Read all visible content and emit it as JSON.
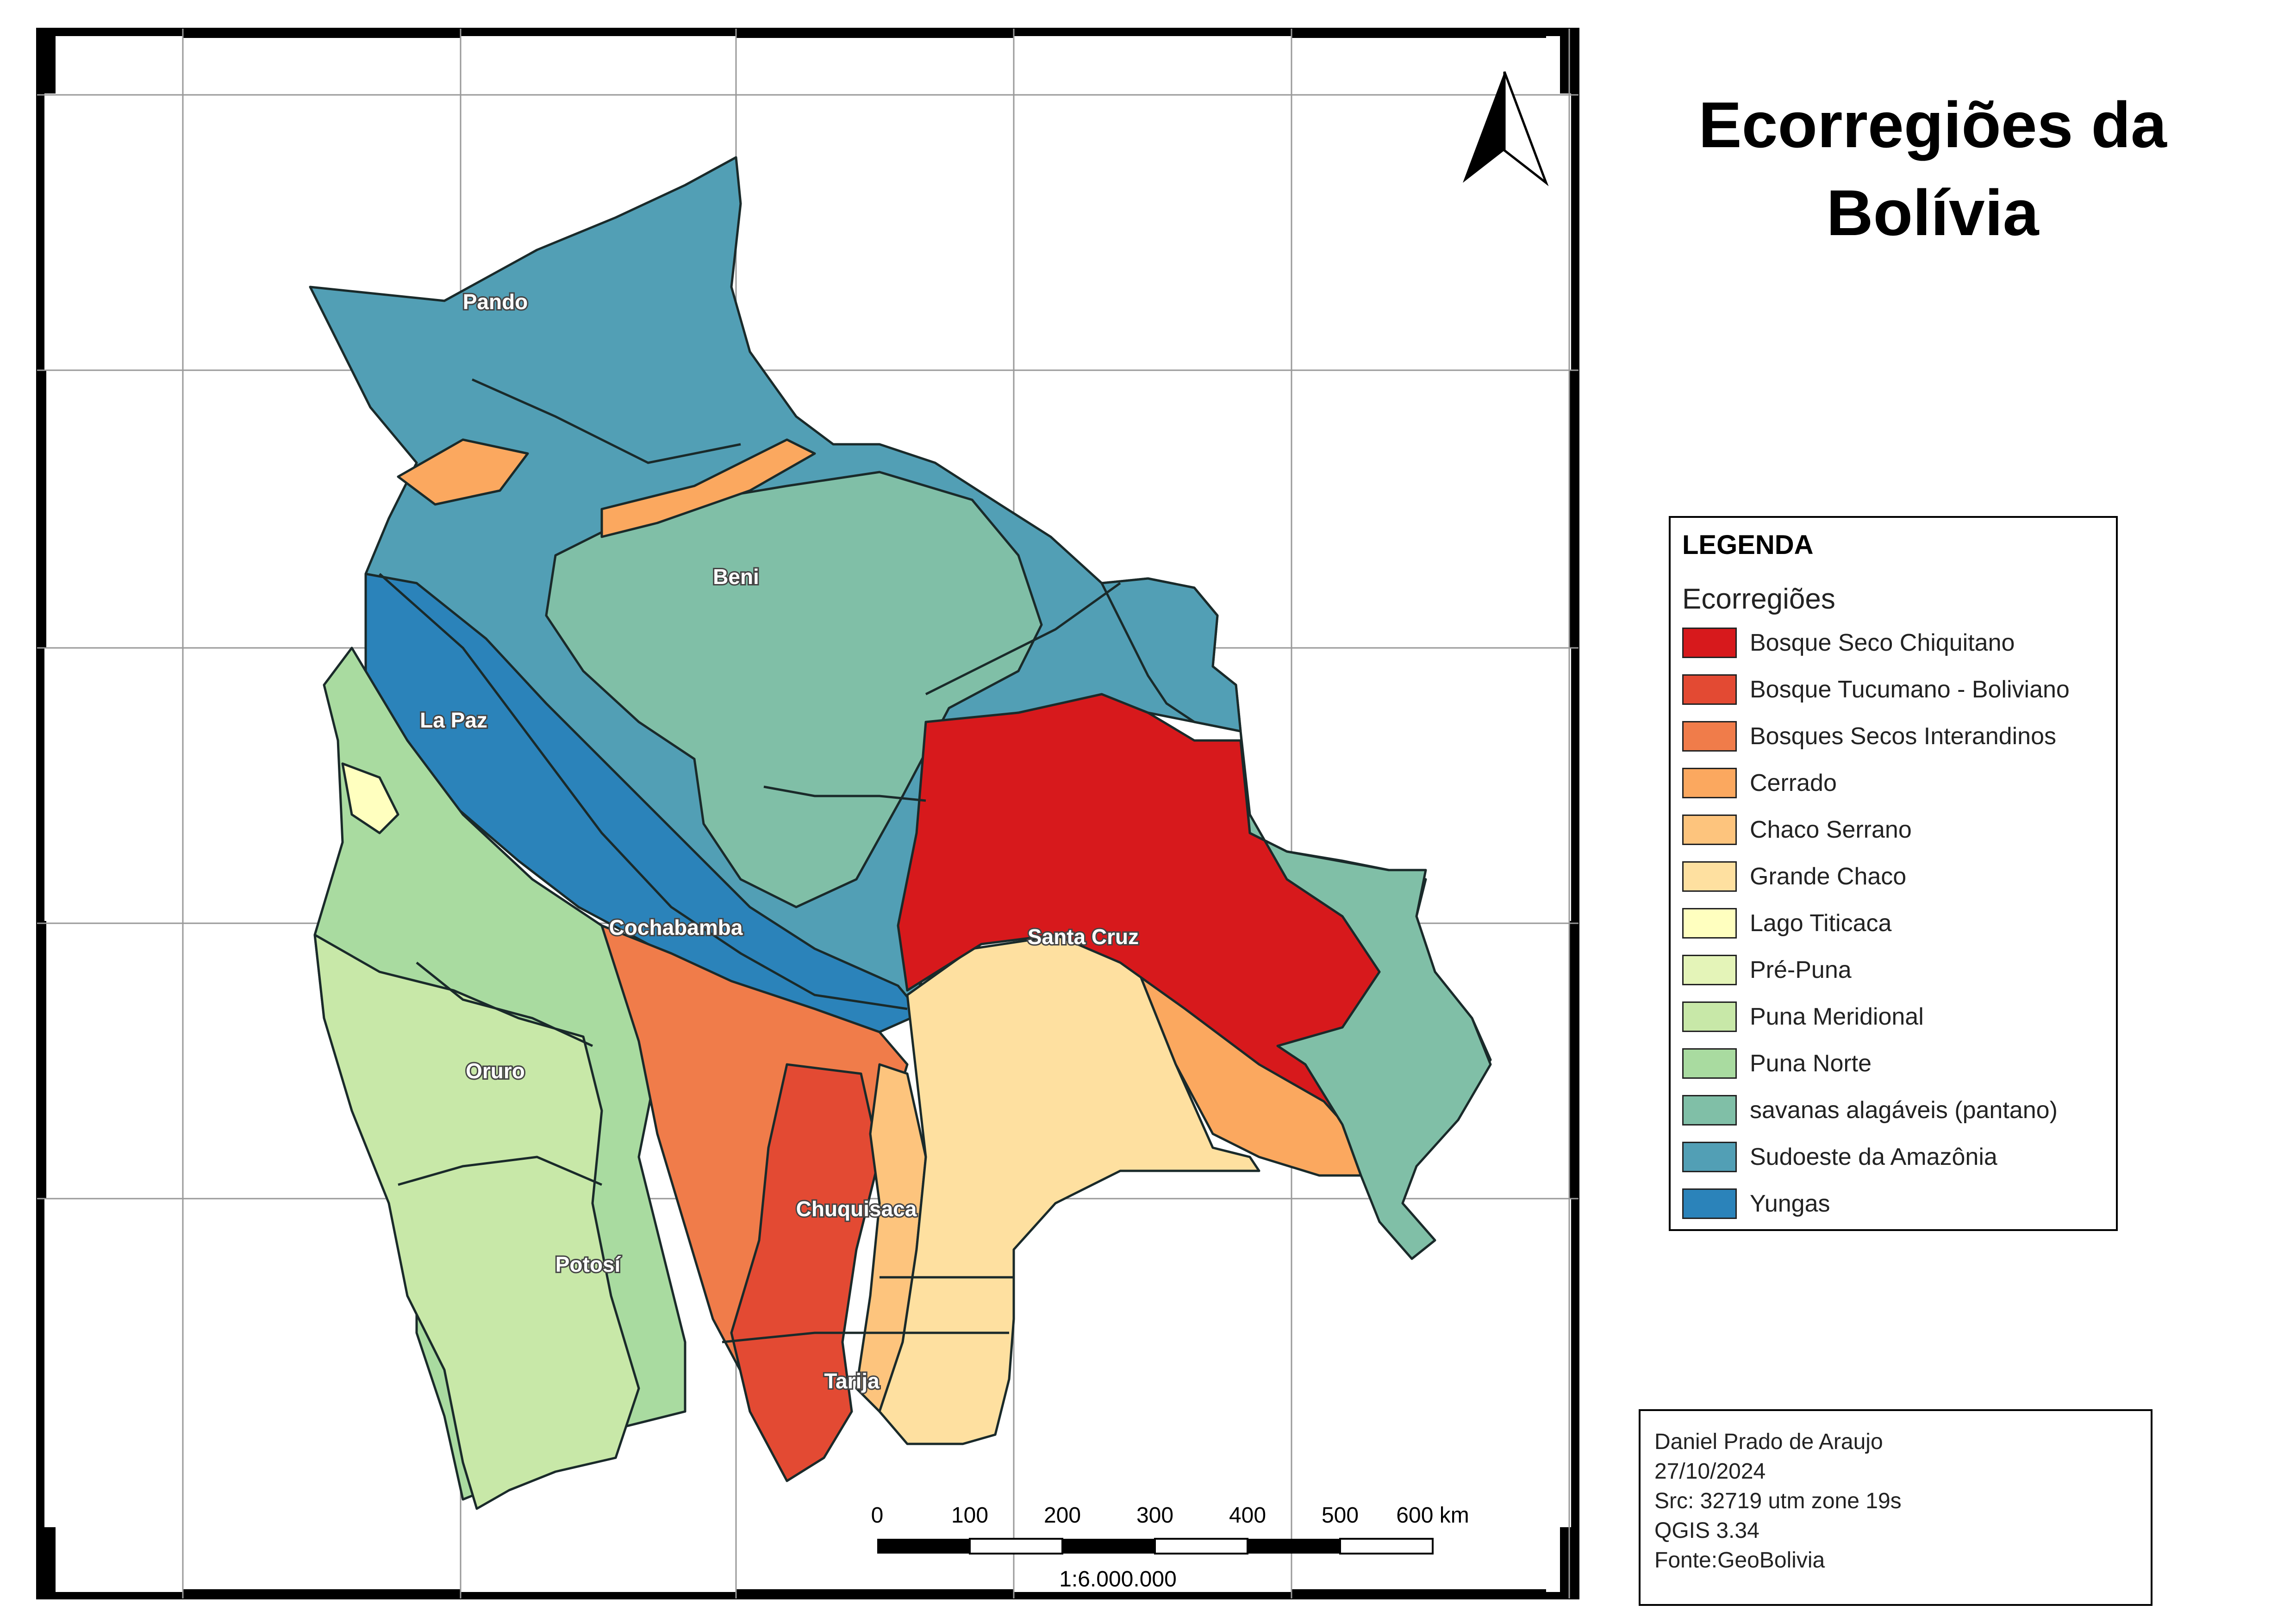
{
  "title": {
    "line1": "Ecorregiões da",
    "line2": "Bolívia"
  },
  "legend": {
    "heading": "LEGENDA",
    "subheading": "Ecorregiões",
    "items": [
      {
        "label": "Bosque Seco Chiquitano",
        "color": "#d7191c"
      },
      {
        "label": "Bosque Tucumano - Boliviano",
        "color": "#e34a33"
      },
      {
        "label": "Bosques Secos Interandinos",
        "color": "#f07c4a"
      },
      {
        "label": "Cerrado",
        "color": "#fba85f"
      },
      {
        "label": "Chaco Serrano",
        "color": "#fdc47d"
      },
      {
        "label": "Grande Chaco",
        "color": "#fee0a0"
      },
      {
        "label": "Lago Titicaca",
        "color": "#ffffbf"
      },
      {
        "label": "Pré-Puna",
        "color": "#e4f4b8"
      },
      {
        "label": "Puna Meridional",
        "color": "#c8e8a8"
      },
      {
        "label": "Puna Norte",
        "color": "#a9dba0"
      },
      {
        "label": "savanas alagáveis (pantano)",
        "color": "#80bfa7"
      },
      {
        "label": "Sudoeste da Amazônia",
        "color": "#529fb5"
      },
      {
        "label": "Yungas",
        "color": "#2b83ba"
      }
    ]
  },
  "regions": {
    "pando": "Pando",
    "beni": "Beni",
    "la_paz": "La Paz",
    "cochabamba": "Cochabamba",
    "santa_cruz": "Santa Cruz",
    "oruro": "Oruro",
    "chuquisaca": "Chuquisaca",
    "potosi": "Potosí",
    "tarija": "Tarija"
  },
  "scale_bar": {
    "ticks": [
      "0",
      "100",
      "200",
      "300",
      "400",
      "500",
      "600 km"
    ],
    "ratio": "1:6.000.000"
  },
  "credits": {
    "author": "Daniel Prado de Araujo",
    "date": "27/10/2024",
    "crs": "Src: 32719 utm zone 19s",
    "software": "QGIS 3.34",
    "source": "Fonte:GeoBolivia"
  },
  "north_arrow": "north-arrow-icon"
}
